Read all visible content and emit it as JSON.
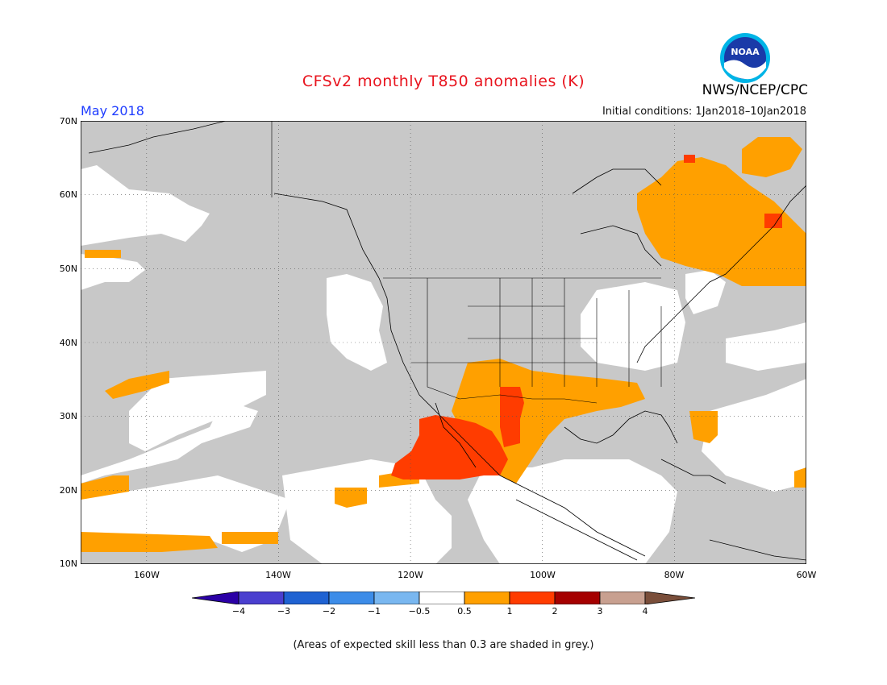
{
  "header": {
    "title": "CFSv2 monthly T850 anomalies (K)",
    "month": "May 2018",
    "initial_conditions": "Initial conditions: 1Jan2018–10Jan2018",
    "agency": "NWS/NCEP/CPC",
    "logo_text": "NOAA"
  },
  "map": {
    "lat_labels": [
      "70N",
      "60N",
      "50N",
      "40N",
      "30N",
      "20N",
      "10N"
    ],
    "lon_labels": [
      "160W",
      "140W",
      "120W",
      "100W",
      "80W",
      "60W"
    ],
    "extent": {
      "lon": [
        -170,
        -60
      ],
      "lat": [
        10,
        70
      ]
    }
  },
  "legend": {
    "labels": [
      "−4",
      "−3",
      "−2",
      "−1",
      "−0.5",
      "0.5",
      "1",
      "2",
      "3",
      "4"
    ],
    "colors": [
      "#2b00a6",
      "#4a3fcf",
      "#1f62d2",
      "#3c8ce8",
      "#79b7f0",
      "#ffffff",
      "#ffa000",
      "#ff3c00",
      "#a50000",
      "#c8a090",
      "#7a4e3a"
    ]
  },
  "footnote": "(Areas of expected skill less than 0.3 are shaded in grey.)",
  "colors": {
    "grey_mask": "#c8c8c8",
    "anomaly_05_1": "#ffa000",
    "anomaly_1_2": "#ff3c00",
    "title_red": "#e8141e",
    "month_blue": "#1e3cff"
  }
}
